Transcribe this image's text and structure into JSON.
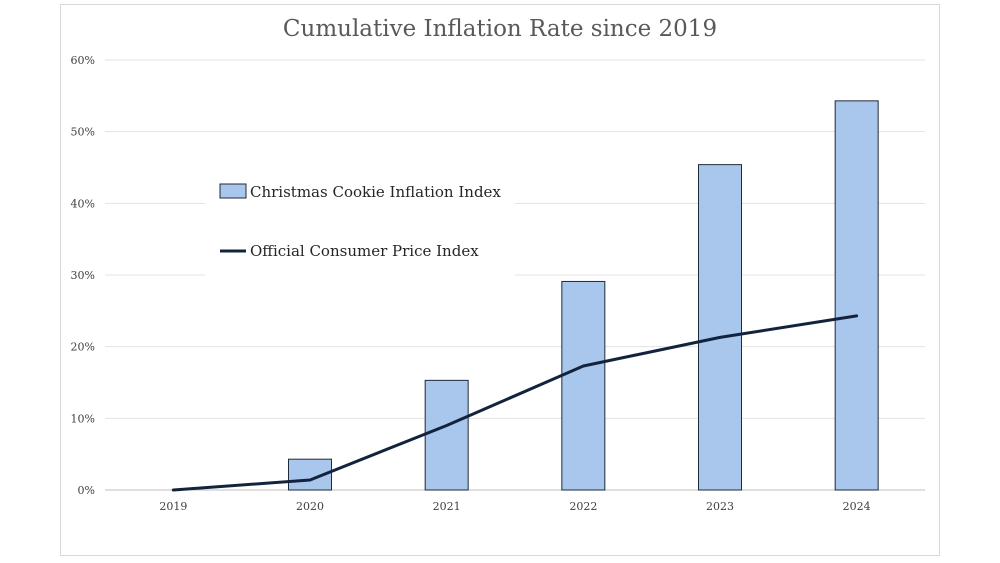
{
  "chart_data": {
    "type": "bar+line",
    "title": "Cumulative Inflation Rate since 2019",
    "categories": [
      "2019",
      "2020",
      "2021",
      "2022",
      "2023",
      "2024"
    ],
    "ylim": [
      0,
      60
    ],
    "yticks": [
      0,
      10,
      20,
      30,
      40,
      50,
      60
    ],
    "ytick_labels": [
      "0%",
      "10%",
      "20%",
      "30%",
      "40%",
      "50%",
      "60%"
    ],
    "grid": true,
    "legend_position": "upper-left inside plot",
    "series": [
      {
        "name": "Christmas Cookie Inflation Index",
        "kind": "bar",
        "color": "#a9c6ec",
        "edge": "#1f2a3a",
        "values": [
          0,
          4.3,
          15.3,
          29.1,
          45.4,
          54.3
        ]
      },
      {
        "name": "Official Consumer Price Index",
        "kind": "line",
        "color": "#14233d",
        "values": [
          0,
          1.4,
          9.0,
          17.3,
          21.3,
          24.3
        ]
      }
    ]
  }
}
